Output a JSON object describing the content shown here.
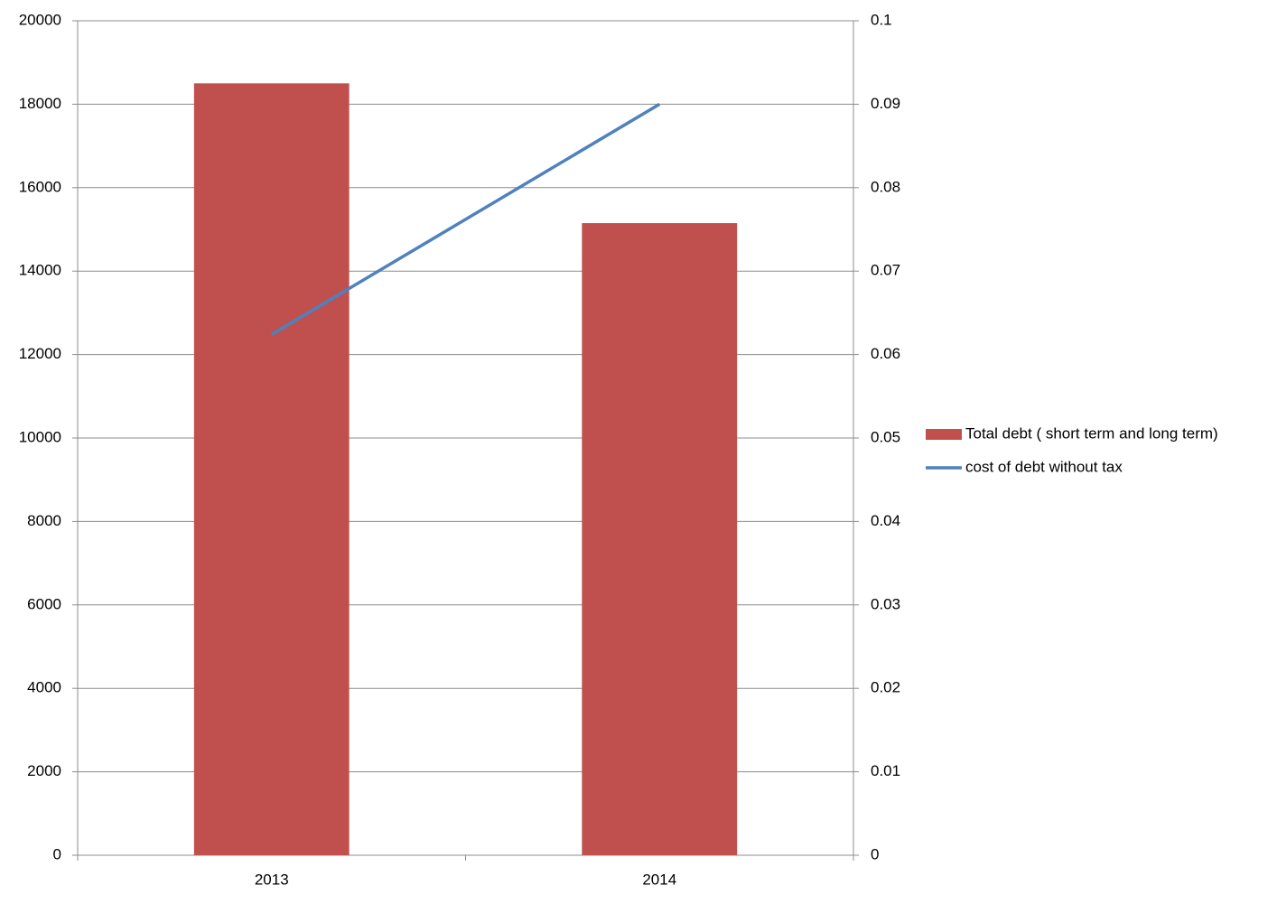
{
  "chart_data": {
    "type": "bar",
    "categories": [
      "2013",
      "2014"
    ],
    "series": [
      {
        "name": "Total debt ( short term and long term)",
        "type": "bar",
        "color": "#c0504d",
        "values": [
          18500,
          15150
        ]
      },
      {
        "name": "cost of debt without tax",
        "type": "line",
        "axis": "y2",
        "color": "#4f81bd",
        "values": [
          0.0624,
          0.09
        ]
      }
    ],
    "ylim": [
      0,
      20000
    ],
    "yticks": [
      0,
      2000,
      4000,
      6000,
      8000,
      10000,
      12000,
      14000,
      16000,
      18000,
      20000
    ],
    "y2lim": [
      0,
      0.1
    ],
    "y2ticks": [
      0,
      0.01,
      0.02,
      0.03,
      0.04,
      0.05,
      0.06,
      0.07,
      0.08,
      0.09,
      0.1
    ],
    "grid": true,
    "legend": "right"
  }
}
